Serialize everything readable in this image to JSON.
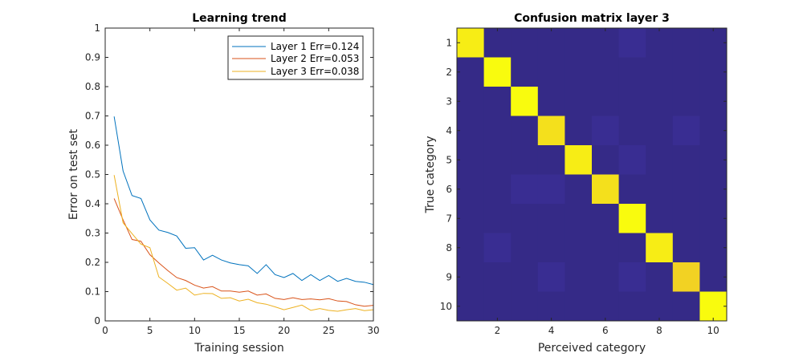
{
  "chart_data": [
    {
      "type": "line",
      "title": "Learning trend",
      "xlabel": "Training session",
      "ylabel": "Error on test set",
      "xlim": [
        0,
        30
      ],
      "ylim": [
        0,
        1
      ],
      "xticks": [
        0,
        5,
        10,
        15,
        20,
        25,
        30
      ],
      "yticks": [
        0,
        0.1,
        0.2,
        0.3,
        0.4,
        0.5,
        0.6,
        0.7,
        0.8,
        0.9,
        1
      ],
      "grid": false,
      "legend_position": "top-right",
      "x": [
        1,
        2,
        3,
        4,
        5,
        6,
        7,
        8,
        9,
        10,
        11,
        12,
        13,
        14,
        15,
        16,
        17,
        18,
        19,
        20,
        21,
        22,
        23,
        24,
        25,
        26,
        27,
        28,
        29,
        30
      ],
      "series": [
        {
          "name": "Layer 1 Err=0.124",
          "color": "#0072bd",
          "values": [
            0.698,
            0.512,
            0.428,
            0.418,
            0.345,
            0.31,
            0.302,
            0.29,
            0.248,
            0.25,
            0.208,
            0.224,
            0.208,
            0.198,
            0.192,
            0.188,
            0.162,
            0.192,
            0.158,
            0.148,
            0.162,
            0.138,
            0.158,
            0.138,
            0.155,
            0.135,
            0.145,
            0.135,
            0.132,
            0.124
          ]
        },
        {
          "name": "Layer 2 Err=0.053",
          "color": "#d95319",
          "values": [
            0.418,
            0.345,
            0.278,
            0.272,
            0.226,
            0.198,
            0.172,
            0.148,
            0.138,
            0.122,
            0.112,
            0.117,
            0.102,
            0.102,
            0.098,
            0.102,
            0.088,
            0.092,
            0.077,
            0.073,
            0.079,
            0.073,
            0.075,
            0.072,
            0.076,
            0.068,
            0.066,
            0.055,
            0.05,
            0.053
          ]
        },
        {
          "name": "Layer 3 Err=0.038",
          "color": "#edb120",
          "values": [
            0.498,
            0.335,
            0.298,
            0.262,
            0.25,
            0.15,
            0.128,
            0.105,
            0.112,
            0.088,
            0.094,
            0.093,
            0.077,
            0.079,
            0.068,
            0.074,
            0.062,
            0.057,
            0.048,
            0.038,
            0.046,
            0.054,
            0.036,
            0.042,
            0.036,
            0.033,
            0.038,
            0.042,
            0.035,
            0.038
          ]
        }
      ]
    },
    {
      "type": "heatmap",
      "title": "Confusion matrix layer 3",
      "xlabel": "Perceived category",
      "ylabel": "True category",
      "xticks": [
        2,
        4,
        6,
        8,
        10
      ],
      "yticks": [
        1,
        2,
        3,
        4,
        5,
        6,
        7,
        8,
        9,
        10
      ],
      "categories": [
        1,
        2,
        3,
        4,
        5,
        6,
        7,
        8,
        9,
        10
      ],
      "colormap": {
        "low": "#352a87",
        "mid": "#6f45d4",
        "high": "#f9fb0e"
      },
      "values": [
        [
          0.96,
          0.0,
          0.0,
          0.0,
          0.0,
          0.0,
          0.04,
          0.0,
          0.0,
          0.0
        ],
        [
          0.0,
          1.0,
          0.0,
          0.0,
          0.0,
          0.0,
          0.0,
          0.0,
          0.0,
          0.0
        ],
        [
          0.0,
          0.0,
          1.0,
          0.0,
          0.0,
          0.0,
          0.0,
          0.0,
          0.0,
          0.0
        ],
        [
          0.0,
          0.0,
          0.0,
          0.92,
          0.0,
          0.04,
          0.0,
          0.0,
          0.04,
          0.0
        ],
        [
          0.0,
          0.0,
          0.0,
          0.0,
          0.96,
          0.0,
          0.04,
          0.0,
          0.0,
          0.0
        ],
        [
          0.0,
          0.0,
          0.04,
          0.04,
          0.0,
          0.92,
          0.0,
          0.0,
          0.0,
          0.0
        ],
        [
          0.0,
          0.0,
          0.0,
          0.0,
          0.0,
          0.0,
          1.0,
          0.0,
          0.0,
          0.0
        ],
        [
          0.0,
          0.04,
          0.0,
          0.0,
          0.0,
          0.0,
          0.0,
          0.96,
          0.0,
          0.0
        ],
        [
          0.0,
          0.0,
          0.0,
          0.04,
          0.0,
          0.0,
          0.04,
          0.0,
          0.88,
          0.0
        ],
        [
          0.0,
          0.0,
          0.0,
          0.0,
          0.0,
          0.0,
          0.0,
          0.0,
          0.0,
          1.0
        ]
      ]
    }
  ]
}
